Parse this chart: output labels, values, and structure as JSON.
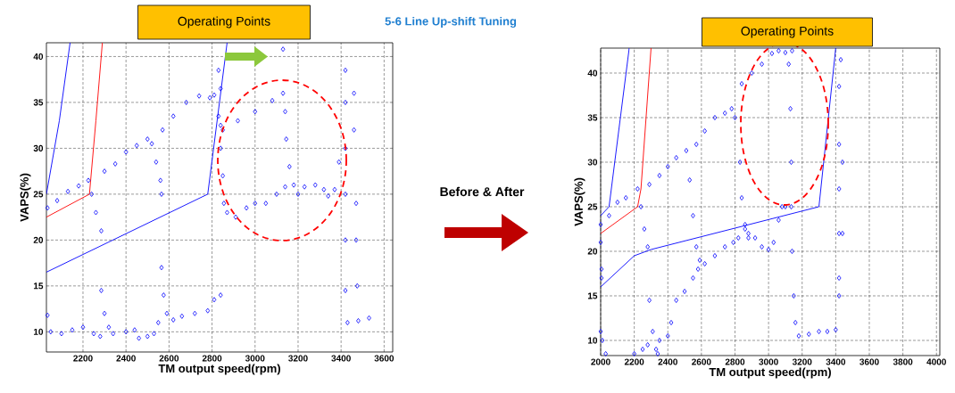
{
  "chart_data": [
    {
      "type": "scatter",
      "title": "5-6 Line Up-shift Tuning",
      "xlabel": "TM output speed(rpm)",
      "ylabel": "VAPS(%)",
      "annotations": [
        "Operating Points",
        "Before & After"
      ],
      "xlim": [
        2030,
        3640
      ],
      "ylim": [
        7.8,
        41.5
      ],
      "xticks": [
        2200,
        2400,
        2600,
        2800,
        3000,
        3200,
        3400,
        3600
      ],
      "yticks": [
        10,
        15,
        20,
        25,
        30,
        35,
        40
      ],
      "grid": true,
      "series": [
        {
          "color": "#0000ff",
          "marker": "diamond",
          "x": [
            2035,
            2080,
            2130,
            2180,
            2225,
            2240,
            2260,
            2285,
            2300,
            2350,
            2400,
            2450,
            2500,
            2520,
            2540,
            2560,
            2565,
            2570,
            2620,
            2680,
            2740,
            2790,
            2810,
            2830,
            2840,
            2850,
            2920,
            3000,
            3080,
            3130,
            3140,
            3145,
            3160,
            3180,
            3200,
            3230,
            3280,
            3320,
            3340,
            3370,
            3390,
            2840,
            2850,
            2855,
            2870,
            2910,
            2960,
            3000,
            3050,
            3100,
            3140,
            2830,
            2840,
            3130,
            3420,
            3420,
            3420,
            3420,
            3420,
            3420,
            3430,
            3480,
            3530,
            3460,
            3460,
            3470,
            3470,
            3475,
            2035,
            2050,
            2100,
            2150,
            2200,
            2250,
            2280,
            2285,
            2300,
            2320,
            2340,
            2400,
            2440,
            2460,
            2500,
            2530,
            2550,
            2565,
            2575,
            2590,
            2620,
            2660,
            2720,
            2780,
            2810,
            2840
          ],
          "values": [
            23.5,
            24.3,
            25.3,
            25.9,
            26.5,
            25,
            23,
            21,
            27.5,
            28.3,
            29.6,
            30.3,
            31,
            30.5,
            28.5,
            26.5,
            25,
            32,
            33.5,
            35,
            35.7,
            35.5,
            35.8,
            33.5,
            32.5,
            32,
            33,
            34,
            35.2,
            36,
            34,
            31,
            28,
            26,
            25,
            25.8,
            26,
            25.5,
            24.8,
            25.5,
            28.5,
            30,
            27,
            24,
            23,
            22.5,
            23.5,
            24,
            24,
            25,
            25.8,
            38.5,
            36.5,
            40.8,
            14.5,
            20,
            25,
            30,
            35,
            38.5,
            11,
            11.2,
            11.5,
            36,
            32,
            24,
            20,
            15,
            11.8,
            10,
            9.8,
            10.2,
            10.5,
            9.8,
            9.5,
            14.5,
            12,
            10.5,
            9.8,
            10,
            10.2,
            9.3,
            9.5,
            9.8,
            11,
            17,
            14,
            12,
            11.3,
            11.7,
            12,
            12.3,
            13.5,
            14
          ]
        },
        {
          "type": "line",
          "color": "#0000ff",
          "x": [
            2030,
            2090,
            2140
          ],
          "values": [
            25,
            33,
            41.5
          ]
        },
        {
          "type": "line",
          "color": "#ff0000",
          "x": [
            2030,
            2230,
            2260,
            2290
          ],
          "values": [
            22.5,
            25,
            33,
            41.5
          ]
        },
        {
          "type": "line",
          "color": "#0000ff",
          "x": [
            2030,
            2780,
            2870
          ],
          "values": [
            16.5,
            25,
            41.5
          ]
        }
      ]
    },
    {
      "type": "scatter",
      "xlabel": "TM output speed(rpm)",
      "ylabel": "VAPS(%)",
      "annotations": [
        "Operating Points"
      ],
      "xlim": [
        2000,
        4020
      ],
      "ylim": [
        8.3,
        42.8
      ],
      "xticks": [
        2000,
        2200,
        2400,
        2600,
        2800,
        3000,
        3200,
        3400,
        3600,
        3800,
        4000
      ],
      "yticks": [
        10,
        15,
        20,
        25,
        30,
        35,
        40
      ],
      "grid": true,
      "series": [
        {
          "color": "#0000ff",
          "marker": "diamond",
          "x": [
            2000,
            2005,
            2005,
            2000,
            2010,
            2030,
            2000,
            2050,
            2100,
            2150,
            2220,
            2240,
            2260,
            2280,
            2290,
            2350,
            2400,
            2450,
            2510,
            2530,
            2550,
            2570,
            2590,
            2620,
            2680,
            2740,
            2790,
            2820,
            2860,
            2880,
            2920,
            2960,
            3000,
            3030,
            3060,
            3080,
            3100,
            2570,
            2620,
            2680,
            2740,
            2780,
            2800,
            2830,
            2840,
            2860,
            2880,
            2840,
            2900,
            2960,
            3020,
            3060,
            3100,
            3140,
            3120,
            3130,
            3135,
            3135,
            3140,
            3150,
            3160,
            3180,
            3240,
            3300,
            3350,
            3400,
            3420,
            3420,
            3420,
            3420,
            3420,
            3420,
            3430,
            3440,
            3440,
            2200,
            2250,
            2280,
            2290,
            2310,
            2330,
            2340,
            2350,
            2400,
            2420,
            2450,
            2500,
            2550,
            2580
          ],
          "values": [
            21,
            18,
            17,
            11,
            10,
            8.5,
            23,
            24,
            25.5,
            26,
            27,
            25,
            22.5,
            20.5,
            27.5,
            28.5,
            29.5,
            30.5,
            31.3,
            28,
            24,
            20.5,
            19,
            18.6,
            19.5,
            20.5,
            21,
            21.5,
            22.5,
            21.5,
            21.5,
            20.5,
            20.2,
            21,
            23.5,
            25,
            25,
            32,
            33.5,
            35,
            35.5,
            36,
            35,
            30,
            26,
            23,
            22,
            38.8,
            40,
            41,
            42.2,
            42.5,
            42.3,
            42.5,
            41,
            36,
            30,
            25,
            20,
            15,
            12,
            10.5,
            10.7,
            11,
            11,
            11.2,
            15,
            17,
            22,
            27,
            32,
            38.5,
            41.5,
            30,
            22,
            8.5,
            9,
            9.5,
            14.5,
            11,
            9,
            8.5,
            10,
            10.5,
            12,
            14.5,
            15.5,
            17,
            18
          ]
        },
        {
          "type": "line",
          "color": "#0000ff",
          "x": [
            2000,
            2050,
            2170
          ],
          "values": [
            24,
            25,
            42.8
          ]
        },
        {
          "type": "line",
          "color": "#ff0000",
          "x": [
            2000,
            2220,
            2240,
            2300
          ],
          "values": [
            22,
            25,
            27,
            42.8
          ]
        },
        {
          "type": "line",
          "color": "#0000ff",
          "x": [
            2000,
            2200,
            2300,
            3300,
            3400
          ],
          "values": [
            16,
            19.5,
            20.2,
            25,
            42.8
          ]
        }
      ]
    }
  ]
}
